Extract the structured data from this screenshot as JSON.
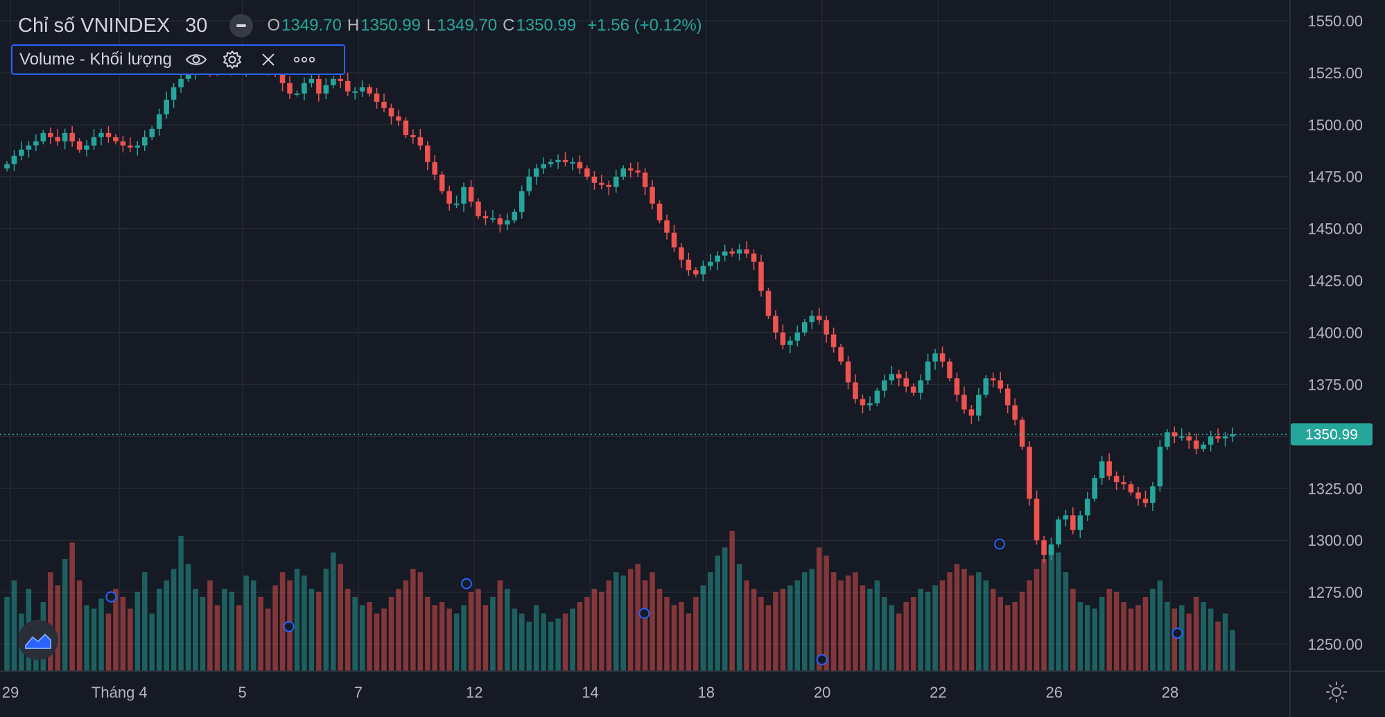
{
  "legend": {
    "symbol": "Chỉ số VNINDEX",
    "interval": "30",
    "o_label": "O",
    "o": "1349.70",
    "h_label": "H",
    "h": "1350.99",
    "l_label": "L",
    "l": "1349.70",
    "c_label": "C",
    "c": "1350.99",
    "change": "+1.56 (+0.12%)"
  },
  "volume_legend": {
    "label": "Volume - Khối lượng"
  },
  "colors": {
    "background": "#161a25",
    "up": "#26a69a",
    "down": "#ef5350",
    "grid": "#242833",
    "text": "#b2b5be",
    "accent": "#2962ff"
  },
  "chart_data": {
    "type": "candlestick",
    "symbol": "VNINDEX",
    "interval_minutes": 30,
    "y_axis": {
      "min": 1237,
      "max": 1560,
      "ticks": [
        1550,
        1525,
        1500,
        1475,
        1450,
        1425,
        1400,
        1375,
        1350,
        1325,
        1300,
        1275,
        1250
      ],
      "tick_labels": [
        "1550.00",
        "1525.00",
        "1500.00",
        "1475.00",
        "1450.00",
        "1425.00",
        "1400.00",
        "1375.00",
        "1350.00",
        "1325.00",
        "1300.00",
        "1275.00",
        "1250.00"
      ]
    },
    "x_axis": {
      "tick_labels": [
        "29",
        "Tháng 4",
        "5",
        "7",
        "12",
        "14",
        "18",
        "20",
        "22",
        "26",
        "28"
      ]
    },
    "last_price": 1350.99,
    "last_price_label": "1350.99",
    "close_path": [
      1481,
      1485,
      1488,
      1490,
      1492,
      1496,
      1494,
      1492,
      1496,
      1492,
      1488,
      1490,
      1494,
      1496,
      1494,
      1492,
      1490,
      1489,
      1490,
      1494,
      1498,
      1505,
      1512,
      1518,
      1522,
      1525,
      1527,
      1528,
      1527,
      1526,
      1527,
      1528,
      1527,
      1527,
      1529,
      1528,
      1527,
      1525,
      1520,
      1515,
      1515,
      1520,
      1522,
      1515,
      1519,
      1522,
      1521,
      1516,
      1516,
      1518,
      1515,
      1511,
      1508,
      1504,
      1502,
      1495,
      1494,
      1490,
      1482,
      1476,
      1468,
      1462,
      1462,
      1470,
      1463,
      1456,
      1455,
      1455,
      1452,
      1454,
      1458,
      1468,
      1475,
      1479,
      1481,
      1482,
      1483,
      1482,
      1482,
      1479,
      1475,
      1472,
      1471,
      1470,
      1475,
      1479,
      1478,
      1477,
      1470,
      1462,
      1454,
      1448,
      1441,
      1435,
      1430,
      1428,
      1432,
      1434,
      1437,
      1439,
      1438,
      1440,
      1438,
      1434,
      1420,
      1408,
      1400,
      1394,
      1396,
      1400,
      1405,
      1408,
      1406,
      1399,
      1393,
      1386,
      1376,
      1368,
      1365,
      1366,
      1372,
      1377,
      1380,
      1378,
      1374,
      1371,
      1377,
      1386,
      1390,
      1386,
      1378,
      1370,
      1363,
      1360,
      1370,
      1378,
      1377,
      1373,
      1365,
      1358,
      1345,
      1320,
      1300,
      1293,
      1298,
      1310,
      1312,
      1305,
      1312,
      1320,
      1330,
      1338,
      1331,
      1328,
      1327,
      1323,
      1320,
      1318,
      1326,
      1345,
      1352,
      1350,
      1350,
      1348,
      1344,
      1346,
      1350,
      1349,
      1350,
      1351
    ],
    "volume_path": [
      0.45,
      0.55,
      0.35,
      0.5,
      0.3,
      0.42,
      0.6,
      0.52,
      0.68,
      0.78,
      0.55,
      0.4,
      0.38,
      0.44,
      0.35,
      0.5,
      0.45,
      0.38,
      0.48,
      0.6,
      0.35,
      0.5,
      0.55,
      0.62,
      0.82,
      0.65,
      0.5,
      0.45,
      0.55,
      0.4,
      0.5,
      0.48,
      0.4,
      0.58,
      0.55,
      0.45,
      0.38,
      0.52,
      0.6,
      0.55,
      0.62,
      0.58,
      0.5,
      0.48,
      0.62,
      0.72,
      0.65,
      0.5,
      0.45,
      0.4,
      0.42,
      0.35,
      0.38,
      0.45,
      0.5,
      0.55,
      0.62,
      0.6,
      0.45,
      0.4,
      0.42,
      0.38,
      0.35,
      0.4,
      0.48,
      0.5,
      0.4,
      0.45,
      0.55,
      0.5,
      0.38,
      0.35,
      0.3,
      0.4,
      0.35,
      0.3,
      0.32,
      0.35,
      0.38,
      0.42,
      0.45,
      0.5,
      0.48,
      0.55,
      0.6,
      0.58,
      0.62,
      0.65,
      0.55,
      0.6,
      0.5,
      0.45,
      0.4,
      0.42,
      0.35,
      0.45,
      0.52,
      0.6,
      0.7,
      0.75,
      0.85,
      0.65,
      0.55,
      0.5,
      0.45,
      0.4,
      0.48,
      0.5,
      0.52,
      0.55,
      0.6,
      0.62,
      0.75,
      0.7,
      0.6,
      0.55,
      0.58,
      0.6,
      0.52,
      0.5,
      0.55,
      0.45,
      0.4,
      0.35,
      0.42,
      0.45,
      0.5,
      0.48,
      0.52,
      0.55,
      0.6,
      0.65,
      0.62,
      0.58,
      0.6,
      0.55,
      0.5,
      0.45,
      0.4,
      0.42,
      0.48,
      0.55,
      0.62,
      0.68,
      0.75,
      0.72,
      0.6,
      0.5,
      0.42,
      0.4,
      0.38,
      0.45,
      0.5,
      0.48,
      0.42,
      0.38,
      0.4,
      0.45,
      0.5,
      0.55,
      0.42,
      0.38,
      0.4,
      0.35,
      0.45,
      0.42,
      0.38,
      0.3,
      0.35,
      0.25
    ],
    "event_markers_x_fraction": [
      0.085,
      0.23,
      0.375,
      0.52,
      0.665,
      0.81,
      0.955
    ],
    "event_markers_volume_height": [
      0.4,
      0.22,
      0.48,
      0.3,
      0.02,
      0.72,
      0.18
    ]
  }
}
